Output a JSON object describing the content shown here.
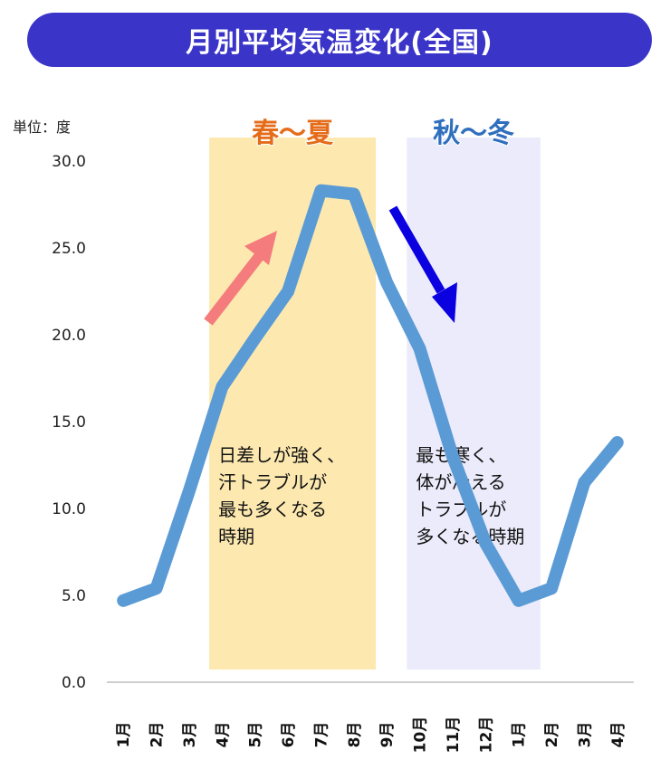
{
  "title": "月別平均気温変化(全国)",
  "chart_data": {
    "type": "line",
    "unit_label": "単位：度",
    "categories": [
      "1月",
      "2月",
      "3月",
      "4月",
      "5月",
      "6月",
      "7月",
      "8月",
      "9月",
      "10月",
      "11月",
      "12月",
      "1月",
      "2月",
      "3月",
      "4月"
    ],
    "values": [
      4.7,
      5.4,
      11.0,
      17.0,
      19.8,
      22.5,
      28.3,
      28.1,
      23.0,
      19.2,
      13.0,
      8.0,
      4.7,
      5.4,
      11.5,
      13.8
    ],
    "ylim": [
      0,
      30
    ],
    "yticks": [
      "0.0",
      "5.0",
      "10.0",
      "15.0",
      "20.0",
      "25.0",
      "30.0"
    ],
    "ytick_values": [
      0,
      5,
      10,
      15,
      20,
      25,
      30
    ],
    "line_color": "#5b9bd5",
    "bands": [
      {
        "label": "春～夏",
        "from": 3,
        "to": 8,
        "fill": "#fde9b0",
        "label_color": "#e46c1a",
        "note": [
          "日差しが強く、",
          "汗トラブルが",
          "最も多くなる",
          "時期"
        ]
      },
      {
        "label": "秋～冬",
        "from": 9,
        "to": 13,
        "fill": "#ebebfb",
        "label_color": "#2f6fbe",
        "note": [
          "最も寒く、",
          "体が冷える",
          "トラブルが",
          "多くなる時期"
        ]
      }
    ],
    "arrows": [
      {
        "name": "up-arrow",
        "color": "#f47c7c"
      },
      {
        "name": "down-arrow",
        "color": "#0a00e0"
      }
    ]
  }
}
